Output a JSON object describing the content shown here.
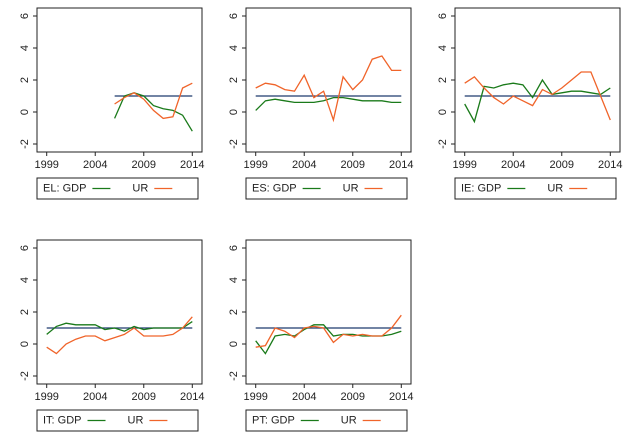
{
  "chart_data": [
    {
      "type": "line",
      "x": [
        1999,
        2000,
        2001,
        2002,
        2003,
        2004,
        2005,
        2006,
        2007,
        2008,
        2009,
        2010,
        2011,
        2012,
        2013,
        2014
      ],
      "series": [
        {
          "name": "EL: GDP",
          "color": "#1a7a1a",
          "values": [
            null,
            null,
            null,
            null,
            null,
            null,
            null,
            -0.4,
            1.0,
            1.2,
            1.0,
            0.4,
            0.2,
            0.1,
            -0.2,
            -1.2
          ]
        },
        {
          "name": "UR",
          "color": "#f0642a",
          "values": [
            null,
            null,
            null,
            null,
            null,
            null,
            null,
            0.5,
            0.9,
            1.2,
            0.8,
            0.1,
            -0.4,
            -0.3,
            1.5,
            1.8
          ]
        }
      ],
      "hline": 1,
      "hline_color": "#1f3a6e",
      "xlim": [
        1998,
        2015
      ],
      "xticks": [
        1999,
        2004,
        2009,
        2014
      ],
      "ylim": [
        -2.5,
        6.5
      ],
      "yticks": [
        -2,
        0,
        2,
        4,
        6
      ]
    },
    {
      "type": "line",
      "x": [
        1999,
        2000,
        2001,
        2002,
        2003,
        2004,
        2005,
        2006,
        2007,
        2008,
        2009,
        2010,
        2011,
        2012,
        2013,
        2014
      ],
      "series": [
        {
          "name": "ES: GDP",
          "color": "#1a7a1a",
          "values": [
            0.1,
            0.7,
            0.8,
            0.7,
            0.6,
            0.6,
            0.6,
            0.7,
            0.9,
            0.9,
            0.8,
            0.7,
            0.7,
            0.7,
            0.6,
            0.6
          ]
        },
        {
          "name": "UR",
          "color": "#f0642a",
          "values": [
            1.5,
            1.8,
            1.7,
            1.4,
            1.3,
            2.3,
            0.9,
            1.3,
            -0.5,
            2.2,
            1.4,
            2.0,
            3.3,
            3.5,
            2.6,
            2.6
          ]
        }
      ],
      "hline": 1,
      "hline_color": "#1f3a6e",
      "xlim": [
        1998,
        2015
      ],
      "xticks": [
        1999,
        2004,
        2009,
        2014
      ],
      "ylim": [
        -2.5,
        6.5
      ],
      "yticks": [
        -2,
        0,
        2,
        4,
        6
      ]
    },
    {
      "type": "line",
      "x": [
        1999,
        2000,
        2001,
        2002,
        2003,
        2004,
        2005,
        2006,
        2007,
        2008,
        2009,
        2010,
        2011,
        2012,
        2013,
        2014
      ],
      "series": [
        {
          "name": "IE: GDP",
          "color": "#1a7a1a",
          "values": [
            0.5,
            -0.6,
            1.6,
            1.5,
            1.7,
            1.8,
            1.7,
            0.9,
            2.0,
            1.1,
            1.2,
            1.3,
            1.3,
            1.2,
            1.1,
            1.5
          ]
        },
        {
          "name": "UR",
          "color": "#f0642a",
          "values": [
            1.8,
            2.2,
            1.5,
            0.9,
            0.5,
            1.0,
            0.7,
            0.4,
            1.4,
            1.1,
            1.5,
            2.0,
            2.5,
            2.5,
            1.0,
            -0.5
          ]
        }
      ],
      "hline": 1,
      "hline_color": "#1f3a6e",
      "xlim": [
        1998,
        2015
      ],
      "xticks": [
        1999,
        2004,
        2009,
        2014
      ],
      "ylim": [
        -2.5,
        6.5
      ],
      "yticks": [
        -2,
        0,
        2,
        4,
        6
      ]
    },
    {
      "type": "line",
      "x": [
        1999,
        2000,
        2001,
        2002,
        2003,
        2004,
        2005,
        2006,
        2007,
        2008,
        2009,
        2010,
        2011,
        2012,
        2013,
        2014
      ],
      "series": [
        {
          "name": "IT: GDP",
          "color": "#1a7a1a",
          "values": [
            0.6,
            1.1,
            1.3,
            1.2,
            1.2,
            1.2,
            0.9,
            1.0,
            0.8,
            1.1,
            0.9,
            1.0,
            1.0,
            1.0,
            1.0,
            1.4
          ]
        },
        {
          "name": "UR",
          "color": "#f0642a",
          "values": [
            -0.2,
            -0.6,
            0.0,
            0.3,
            0.5,
            0.5,
            0.2,
            0.4,
            0.6,
            1.0,
            0.5,
            0.5,
            0.5,
            0.6,
            1.0,
            1.7
          ]
        }
      ],
      "hline": 1,
      "hline_color": "#1f3a6e",
      "xlim": [
        1998,
        2015
      ],
      "xticks": [
        1999,
        2004,
        2009,
        2014
      ],
      "ylim": [
        -2.5,
        6.5
      ],
      "yticks": [
        -2,
        0,
        2,
        4,
        6
      ]
    },
    {
      "type": "line",
      "x": [
        1999,
        2000,
        2001,
        2002,
        2003,
        2004,
        2005,
        2006,
        2007,
        2008,
        2009,
        2010,
        2011,
        2012,
        2013,
        2014
      ],
      "series": [
        {
          "name": "PT: GDP",
          "color": "#1a7a1a",
          "values": [
            0.2,
            -0.6,
            0.5,
            0.6,
            0.5,
            0.9,
            1.2,
            1.2,
            0.5,
            0.6,
            0.6,
            0.5,
            0.5,
            0.5,
            0.6,
            0.8
          ]
        },
        {
          "name": "UR",
          "color": "#f0642a",
          "values": [
            -0.2,
            -0.1,
            1.0,
            0.8,
            0.4,
            1.0,
            1.1,
            1.0,
            0.1,
            0.6,
            0.5,
            0.6,
            0.5,
            0.5,
            1.0,
            1.8
          ]
        }
      ],
      "hline": 1,
      "hline_color": "#1f3a6e",
      "xlim": [
        1998,
        2015
      ],
      "xticks": [
        1999,
        2004,
        2009,
        2014
      ],
      "ylim": [
        -2.5,
        6.5
      ],
      "yticks": [
        -2,
        0,
        2,
        4,
        6
      ]
    }
  ]
}
